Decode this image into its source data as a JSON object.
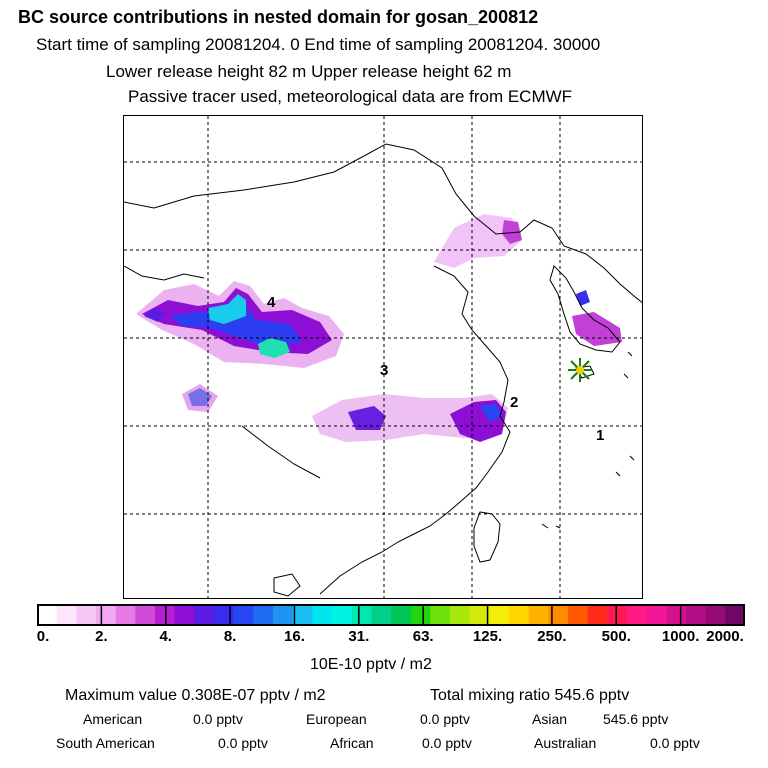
{
  "header": {
    "title": "BC  source contributions in nested domain for gosan_200812",
    "line1": "Start time of sampling 20081204.     0     End time of sampling 20081204. 30000",
    "line2": "Lower release height   82 m          Upper release height   62 m",
    "line3": "Passive tracer used, meteorological data are from ECMWF"
  },
  "map": {
    "source_labels": [
      "1",
      "2",
      "3",
      "4"
    ],
    "receptor_marker": "receptor-star"
  },
  "colorbar": {
    "colors": [
      "#ffffff",
      "#fce6fc",
      "#f7c6f7",
      "#f3a8f3",
      "#e77ae7",
      "#d04ad8",
      "#b51fd1",
      "#8d0fd6",
      "#5a1be3",
      "#3a2cf0",
      "#2747f4",
      "#1e6cf0",
      "#1d94f2",
      "#1cbdf3",
      "#00e5ee",
      "#00f4e2",
      "#00e8b0",
      "#00d08a",
      "#00c455",
      "#22d60d",
      "#70e10b",
      "#a8e60c",
      "#d3ea0c",
      "#f4ef0a",
      "#ffd600",
      "#ffb200",
      "#ff8c00",
      "#ff5a00",
      "#ff2a1a",
      "#ff1a52",
      "#ff1a85",
      "#f01896",
      "#d2128f",
      "#b40e86",
      "#950a77",
      "#6e0863"
    ],
    "ticks": [
      "0.",
      "2.",
      "4.",
      "8.",
      "16.",
      "31.",
      "63.",
      "125.",
      "250.",
      "500.",
      "1000.",
      "2000."
    ],
    "units": "10E-10 pptv / m2"
  },
  "stats": {
    "max_value": "Maximum value  0.308E-07 pptv / m2",
    "total": "Total mixing ratio      545.6 pptv",
    "regions": [
      {
        "name": "American",
        "value": "0.0 pptv"
      },
      {
        "name": "European",
        "value": "0.0 pptv"
      },
      {
        "name": "Asian",
        "value": "545.6 pptv"
      },
      {
        "name": "South American",
        "value": "0.0 pptv"
      },
      {
        "name": "African",
        "value": "0.0 pptv"
      },
      {
        "name": "Australian",
        "value": "0.0 pptv"
      }
    ]
  }
}
